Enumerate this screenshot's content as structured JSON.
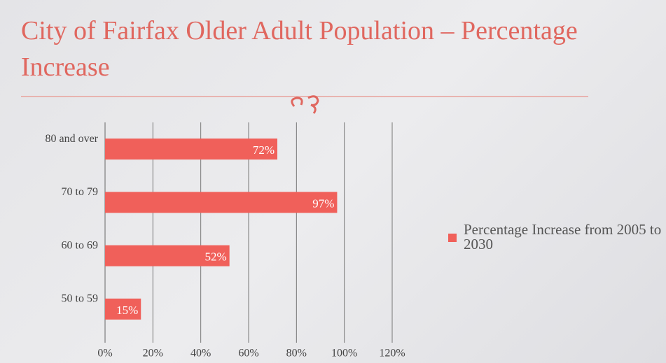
{
  "chart_data": {
    "type": "bar",
    "orientation": "horizontal",
    "title": "City of Fairfax Older Adult Population – Percentage Increase",
    "categories": [
      "80 and over",
      "70 to 79",
      "60 to 69",
      "50 to 59"
    ],
    "series": [
      {
        "name": "Percentage Increase from 2005 to 2030",
        "color": "#f0605a",
        "values": [
          72,
          97,
          52,
          15
        ],
        "value_labels": [
          "72%",
          "97%",
          "52%",
          "15%"
        ]
      }
    ],
    "xlim": [
      0,
      120
    ],
    "xticks": [
      {
        "value": 0,
        "label": "0%"
      },
      {
        "value": 20,
        "label": "20%"
      },
      {
        "value": 40,
        "label": "40%"
      },
      {
        "value": 60,
        "label": "60%"
      },
      {
        "value": 80,
        "label": "80%"
      },
      {
        "value": 100,
        "label": "100%"
      },
      {
        "value": 120,
        "label": "120%"
      }
    ],
    "grid": true,
    "legend": "right"
  }
}
